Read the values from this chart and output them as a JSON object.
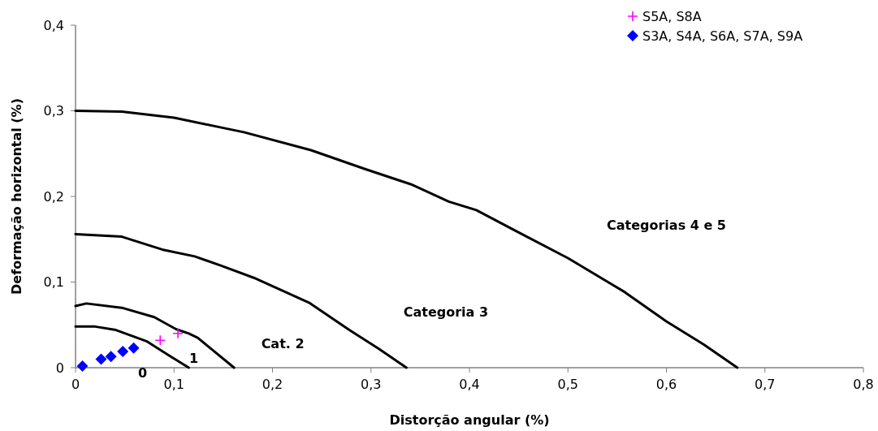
{
  "chart_data": {
    "type": "scatter",
    "xlabel": "Distorção angular (%)",
    "ylabel": "Deformação horizontal (%)",
    "xlim": [
      0,
      0.8
    ],
    "ylim": [
      0,
      0.4
    ],
    "xticks": [
      {
        "value": 0,
        "label": "0"
      },
      {
        "value": 0.1,
        "label": "0,1"
      },
      {
        "value": 0.2,
        "label": "0,2"
      },
      {
        "value": 0.3,
        "label": "0,3"
      },
      {
        "value": 0.4,
        "label": "0,4"
      },
      {
        "value": 0.5,
        "label": "0,5"
      },
      {
        "value": 0.6,
        "label": "0,6"
      },
      {
        "value": 0.7,
        "label": "0,7"
      },
      {
        "value": 0.8,
        "label": "0,8"
      }
    ],
    "yticks": [
      {
        "value": 0,
        "label": "0"
      },
      {
        "value": 0.1,
        "label": "0,1"
      },
      {
        "value": 0.2,
        "label": "0,2"
      },
      {
        "value": 0.3,
        "label": "0,3"
      },
      {
        "value": 0.4,
        "label": "0,4"
      }
    ],
    "grid": false,
    "legend": "top right",
    "series": [
      {
        "type": "line",
        "marker": "none",
        "line_style": "solid",
        "color": "#000000",
        "x": [
          0,
          0.02,
          0.041,
          0.072,
          0.094,
          0.115
        ],
        "values": [
          0.048,
          0.048,
          0.044,
          0.031,
          0.015,
          0
        ]
      },
      {
        "type": "line",
        "marker": "none",
        "line_style": "solid",
        "color": "#000000",
        "x": [
          0,
          0.011,
          0.047,
          0.08,
          0.102,
          0.115,
          0.124,
          0.161
        ],
        "values": [
          0.072,
          0.075,
          0.07,
          0.059,
          0.045,
          0.04,
          0.035,
          0
        ]
      },
      {
        "type": "line",
        "marker": "none",
        "line_style": "solid",
        "color": "#000000",
        "x": [
          0,
          0.047,
          0.088,
          0.121,
          0.148,
          0.181,
          0.237,
          0.278,
          0.308,
          0.336
        ],
        "values": [
          0.156,
          0.153,
          0.138,
          0.13,
          0.119,
          0.105,
          0.076,
          0.044,
          0.022,
          0
        ]
      },
      {
        "type": "line",
        "marker": "none",
        "line_style": "solid",
        "color": "#000000",
        "x": [
          0,
          0.047,
          0.1,
          0.15,
          0.171,
          0.239,
          0.294,
          0.341,
          0.379,
          0.407,
          0.45,
          0.5,
          0.558,
          0.6,
          0.638,
          0.672
        ],
        "values": [
          0.3,
          0.299,
          0.292,
          0.28,
          0.275,
          0.254,
          0.232,
          0.214,
          0.194,
          0.184,
          0.158,
          0.128,
          0.088,
          0.054,
          0.027,
          0
        ]
      },
      {
        "type": "scatter",
        "name": "S5A, S8A",
        "marker": "cross",
        "color": "#ff00ff",
        "x": [
          0.086,
          0.104
        ],
        "values": [
          0.032,
          0.04
        ]
      },
      {
        "type": "scatter",
        "name": "S3A, S4A, S6A, S7A, S9A",
        "marker": "diamond",
        "color": "#0000ff",
        "x": [
          0.007,
          0.026,
          0.036,
          0.048,
          0.059
        ],
        "values": [
          0.002,
          0.01,
          0.013,
          0.019,
          0.023
        ]
      }
    ],
    "annotations": [
      "Categorias 4 e 5",
      "Categoria 3",
      "Cat. 2",
      "1",
      "0"
    ]
  }
}
